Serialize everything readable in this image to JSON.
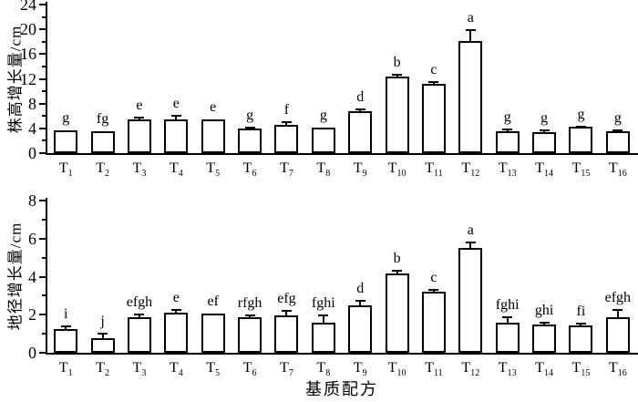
{
  "figure": {
    "background": "#ffffff",
    "ink_color": "#000000",
    "bar_fill": "#ffffff",
    "bar_border": "#000000"
  },
  "chart_data": [
    {
      "type": "bar",
      "panel": "top",
      "title": "",
      "ylabel": "株高增长量/cm",
      "xlabel": "",
      "ylim": [
        0,
        24
      ],
      "yticks": [
        0,
        4,
        8,
        12,
        16,
        20,
        24
      ],
      "minor_tick_step": 2,
      "grid": false,
      "legend": "none",
      "categories": [
        "T1",
        "T2",
        "T3",
        "T4",
        "T5",
        "T6",
        "T7",
        "T8",
        "T9",
        "T10",
        "T11",
        "T12",
        "T13",
        "T14",
        "T15",
        "T16"
      ],
      "values": [
        3.7,
        3.5,
        5.4,
        5.5,
        5.4,
        4.0,
        4.6,
        4.1,
        6.8,
        12.4,
        11.2,
        18.1,
        3.5,
        3.4,
        4.2,
        3.5
      ],
      "errors": [
        0,
        0,
        0.4,
        0.6,
        0,
        0.15,
        0.45,
        0,
        0.25,
        0.2,
        0.35,
        1.8,
        0.4,
        0.25,
        0.12,
        0.18
      ],
      "sig_letters": [
        "g",
        "fg",
        "e",
        "e",
        "e",
        "g",
        "f",
        "g",
        "d",
        "b",
        "c",
        "a",
        "g",
        "g",
        "g",
        "g"
      ]
    },
    {
      "type": "bar",
      "panel": "bottom",
      "title": "",
      "ylabel": "地径增长量/cm",
      "xlabel": "基质配方",
      "ylim": [
        0,
        8
      ],
      "yticks": [
        0,
        2,
        4,
        6,
        8
      ],
      "minor_tick_step": 1,
      "grid": false,
      "legend": "none",
      "categories": [
        "T1",
        "T2",
        "T3",
        "T4",
        "T5",
        "T6",
        "T7",
        "T8",
        "T9",
        "T10",
        "T11",
        "T12",
        "T13",
        "T14",
        "T15",
        "T16"
      ],
      "values": [
        1.25,
        0.75,
        1.85,
        2.1,
        2.05,
        1.85,
        1.95,
        1.6,
        2.5,
        4.15,
        3.2,
        5.5,
        1.6,
        1.5,
        1.45,
        1.85
      ],
      "errors": [
        0.12,
        0.25,
        0.15,
        0.15,
        0,
        0.12,
        0.25,
        0.35,
        0.25,
        0.15,
        0.1,
        0.3,
        0.25,
        0.06,
        0.06,
        0.4
      ],
      "sig_letters": [
        "i",
        "j",
        "efgh",
        "e",
        "ef",
        "rfgh",
        "efg",
        "fghi",
        "d",
        "b",
        "c",
        "a",
        "fghi",
        "ghi",
        "fi",
        "efgh"
      ]
    }
  ]
}
